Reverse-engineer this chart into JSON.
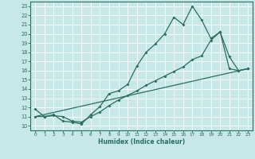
{
  "xlabel": "Humidex (Indice chaleur)",
  "bg_color": "#c8e8e8",
  "grid_color": "#b8d8d8",
  "line_color": "#2a6e60",
  "xlim": [
    -0.5,
    23.5
  ],
  "ylim": [
    9.5,
    23.5
  ],
  "yticks": [
    10,
    11,
    12,
    13,
    14,
    15,
    16,
    17,
    18,
    19,
    20,
    21,
    22,
    23
  ],
  "xticks": [
    0,
    1,
    2,
    3,
    4,
    5,
    6,
    7,
    8,
    9,
    10,
    11,
    12,
    13,
    14,
    15,
    16,
    17,
    18,
    19,
    20,
    21,
    22,
    23
  ],
  "line1_x": [
    0,
    1,
    2,
    3,
    4,
    5,
    6,
    7,
    8,
    9,
    10,
    11,
    12,
    13,
    14,
    15,
    16,
    17,
    18,
    19,
    20,
    21,
    22,
    23
  ],
  "line1_y": [
    11.8,
    11.0,
    11.2,
    10.5,
    10.4,
    10.2,
    11.2,
    12.1,
    13.5,
    13.8,
    14.5,
    16.5,
    18.0,
    18.9,
    20.0,
    21.8,
    21.0,
    23.0,
    21.5,
    19.5,
    20.2,
    17.5,
    16.0,
    16.2
  ],
  "line2_x": [
    0,
    1,
    2,
    3,
    4,
    5,
    6,
    7,
    8,
    9,
    10,
    11,
    12,
    13,
    14,
    15,
    16,
    17,
    18,
    19,
    20,
    21,
    22,
    23
  ],
  "line2_y": [
    11.0,
    11.0,
    11.1,
    11.0,
    10.5,
    10.4,
    11.0,
    11.5,
    12.2,
    12.8,
    13.3,
    13.8,
    14.4,
    14.9,
    15.4,
    15.9,
    16.4,
    17.2,
    17.6,
    19.3,
    20.2,
    16.2,
    16.0,
    16.2
  ],
  "line3_x": [
    0,
    23
  ],
  "line3_y": [
    11.0,
    16.2
  ]
}
